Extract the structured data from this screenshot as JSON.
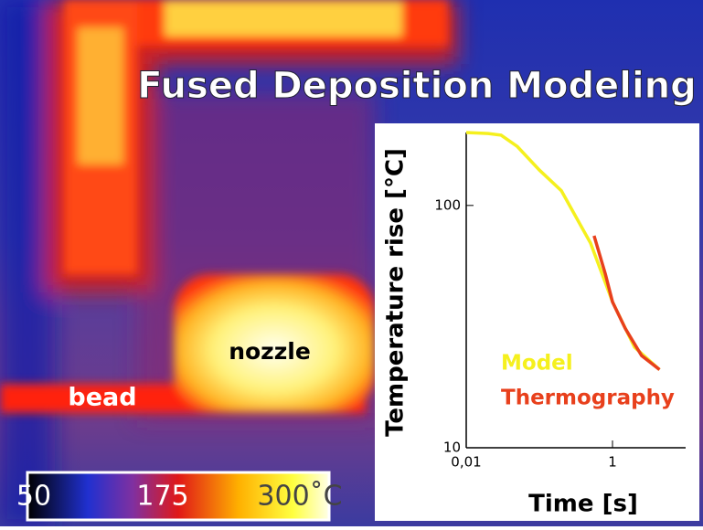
{
  "image_title": "Fused Deposition Modeling",
  "labels": {
    "nozzle": "nozzle",
    "bead": "bead"
  },
  "colorbar": {
    "labels": [
      "50",
      "175",
      "300˚C"
    ]
  },
  "chart_data": {
    "type": "line",
    "x_label": "Time [s]",
    "y_label": "Temperature rise [°C]",
    "log_x": true,
    "log_y": true,
    "xlim": [
      0.01,
      10
    ],
    "ylim": [
      10,
      200
    ],
    "xticks": [
      {
        "value": 0.01,
        "label": "0,01"
      },
      1
    ],
    "yticks": [
      10,
      100
    ],
    "series": [
      {
        "name": "Model",
        "color": "#f5f01e",
        "x": [
          0.01,
          0.02,
          0.03,
          0.05,
          0.1,
          0.2,
          0.5,
          1,
          2,
          4.4
        ],
        "values": [
          200,
          198,
          195,
          175,
          140,
          115,
          70,
          40,
          26,
          21
        ]
      },
      {
        "name": "Thermography",
        "color": "#e8401c",
        "x": [
          0.56,
          0.8,
          1,
          1.5,
          2.5,
          4.4
        ],
        "values": [
          75,
          52,
          40,
          31,
          24,
          21
        ]
      }
    ]
  }
}
